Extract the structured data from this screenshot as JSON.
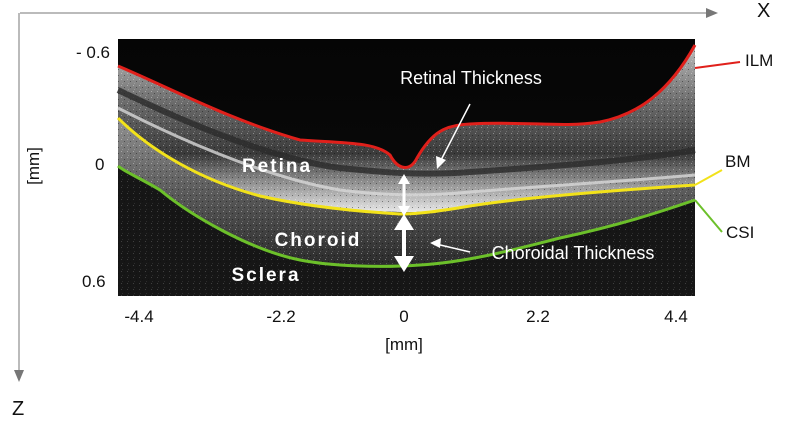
{
  "axes": {
    "x_arrow_label": "X",
    "z_arrow_label": "Z",
    "x_unit": "[mm]",
    "y_unit": "[mm]",
    "x_ticks": [
      "-4.4",
      "-2.2",
      "0",
      "2.2",
      "4.4"
    ],
    "y_ticks": [
      "- 0.6",
      "0",
      "0.6"
    ]
  },
  "image_labels": {
    "retina": "Retina",
    "choroid": "Choroid",
    "sclera": "Sclera",
    "retinal_thickness": "Retinal Thickness",
    "choroidal_thickness": "Choroidal Thickness"
  },
  "boundaries": [
    {
      "name": "ILM",
      "color": "#e0201b"
    },
    {
      "name": "BM",
      "color": "#f2e21a"
    },
    {
      "name": "CSI",
      "color": "#6cc02a"
    }
  ]
}
